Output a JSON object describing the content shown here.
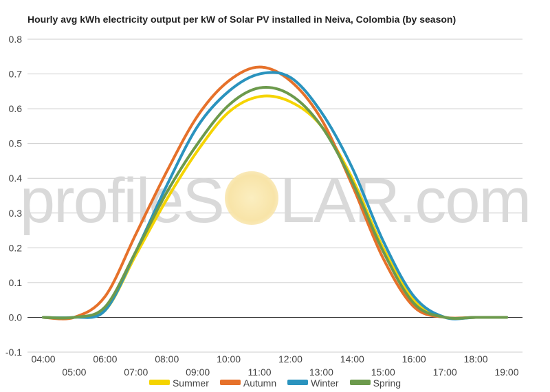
{
  "chart_data": {
    "type": "line",
    "title": "Hourly avg kWh electricity output per kW of Solar PV installed in Neiva, Colombia (by season)",
    "xlabel": "",
    "ylabel": "",
    "ylim": [
      -0.1,
      0.8
    ],
    "yticks": [
      "0.8",
      "0.7",
      "0.6",
      "0.5",
      "0.4",
      "0.3",
      "0.2",
      "0.1",
      "0.0",
      "-0.1"
    ],
    "categories": [
      "04:00",
      "05:00",
      "06:00",
      "07:00",
      "08:00",
      "09:00",
      "10:00",
      "11:00",
      "12:00",
      "13:00",
      "14:00",
      "15:00",
      "16:00",
      "17:00",
      "18:00",
      "19:00"
    ],
    "grid": true,
    "legend_position": "bottom",
    "series": [
      {
        "name": "Summer",
        "color": "#f5d400",
        "values": [
          0.0,
          0.0,
          0.02,
          0.18,
          0.34,
          0.48,
          0.59,
          0.635,
          0.62,
          0.55,
          0.4,
          0.2,
          0.05,
          0.0,
          0.0,
          0.0
        ]
      },
      {
        "name": "Autumn",
        "color": "#e6712a",
        "values": [
          0.0,
          0.0,
          0.06,
          0.24,
          0.42,
          0.58,
          0.68,
          0.72,
          0.68,
          0.57,
          0.38,
          0.17,
          0.03,
          0.0,
          0.0,
          0.0
        ]
      },
      {
        "name": "Winter",
        "color": "#2a93be",
        "values": [
          0.0,
          0.0,
          0.02,
          0.19,
          0.38,
          0.55,
          0.65,
          0.7,
          0.69,
          0.59,
          0.43,
          0.22,
          0.06,
          0.0,
          0.0,
          0.0
        ]
      },
      {
        "name": "Spring",
        "color": "#6c9a4c",
        "values": [
          0.0,
          0.0,
          0.03,
          0.19,
          0.36,
          0.5,
          0.61,
          0.66,
          0.64,
          0.55,
          0.39,
          0.19,
          0.04,
          0.0,
          0.0,
          0.0
        ]
      }
    ]
  },
  "watermark": {
    "left": "profileS",
    "right": "LAR.com"
  }
}
